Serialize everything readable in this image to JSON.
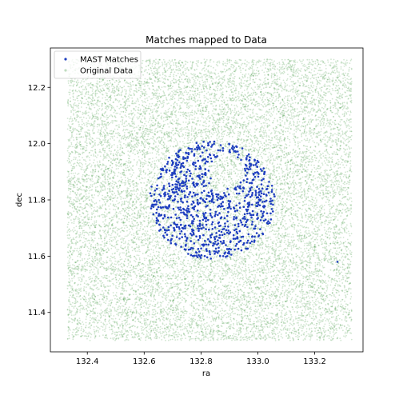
{
  "chart_data": {
    "type": "scatter",
    "title": "Matches mapped to Data",
    "xlabel": "ra",
    "ylabel": "dec",
    "xlim": [
      132.27,
      133.37
    ],
    "ylim": [
      11.26,
      12.34
    ],
    "xticks": [
      132.4,
      132.6,
      132.8,
      133.0,
      133.2
    ],
    "xtick_labels": [
      "132.4",
      "132.6",
      "132.8",
      "133.0",
      "133.2"
    ],
    "yticks": [
      11.4,
      11.6,
      11.8,
      12.0,
      12.2
    ],
    "ytick_labels": [
      "11.4",
      "11.6",
      "11.8",
      "12.0",
      "12.2"
    ],
    "grid": false,
    "legend_position": "top-left",
    "series": [
      {
        "name": "MAST Matches",
        "color": "#1f3fbf",
        "marker": "dot",
        "distribution": "disk",
        "center": [
          132.84,
          11.8
        ],
        "radius_ra": 0.22,
        "radius_dec": 0.21,
        "hole_center": [
          132.89,
          11.9
        ],
        "hole_radius": 0.06,
        "approx_points": 900,
        "extra_points": [
          [
            133.28,
            11.58
          ]
        ]
      },
      {
        "name": "Original Data",
        "color": "#2e8b2e",
        "marker": "dot",
        "distribution": "uniform-square",
        "ra_range": [
          132.33,
          133.33
        ],
        "dec_range": [
          11.3,
          12.3
        ],
        "approx_points": 16000
      }
    ]
  }
}
